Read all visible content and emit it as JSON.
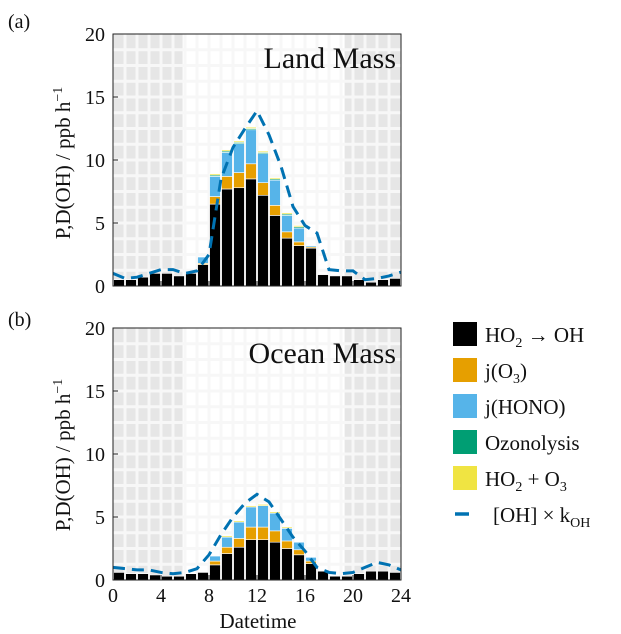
{
  "colors": {
    "night_shade": "#e6e6e6",
    "grid": "#f4f4f4",
    "ho2_oh": "#000000",
    "jo3": "#e69f00",
    "jhono": "#56b4e9",
    "ozonolysis": "#009e73",
    "ho2_o3": "#f0e442",
    "oh_k": "#0072b2"
  },
  "legend": [
    {
      "key": "ho2_oh",
      "pre": "HO",
      "sub": "2",
      "post": " → OH",
      "kind": "box"
    },
    {
      "key": "jo3",
      "pre": "j(O",
      "sub": "3",
      "post": ")",
      "kind": "box"
    },
    {
      "key": "jhono",
      "pre": "j(HONO)",
      "sub": "",
      "post": "",
      "kind": "box"
    },
    {
      "key": "ozonolysis",
      "pre": "Ozonolysis",
      "sub": "",
      "post": "",
      "kind": "box"
    },
    {
      "key": "ho2_o3",
      "pre": "HO",
      "sub": "2",
      "post": " + O",
      "sub2": "3",
      "kind": "box"
    },
    {
      "key": "oh_k",
      "pre": "[OH] × k",
      "sub": "OH",
      "post": "",
      "kind": "dash"
    }
  ],
  "chart_data": [
    {
      "type": "bar",
      "panel_label": "(a)",
      "title": "Land Mass",
      "ylabel": "P,D(OH) / ppb h",
      "ylabel_sup": "−1",
      "xlabel": "",
      "ylim": [
        0,
        20
      ],
      "xlim": [
        0,
        24
      ],
      "yticks": [
        0,
        5,
        10,
        15,
        20
      ],
      "xticks": [
        0,
        4,
        8,
        12,
        16,
        20,
        24
      ],
      "show_x_tick_labels": false,
      "night_shading": [
        [
          0,
          5.8
        ],
        [
          19.3,
          24
        ]
      ],
      "x": [
        0.5,
        1.5,
        2.5,
        3.5,
        4.5,
        5.5,
        6.5,
        7.5,
        8.5,
        9.5,
        10.5,
        11.5,
        12.5,
        13.5,
        14.5,
        15.5,
        16.5,
        17.5,
        18.5,
        19.5,
        20.5,
        21.5,
        22.5,
        23.5
      ],
      "series": [
        {
          "name": "HO2 → OH",
          "key": "ho2_oh",
          "values": [
            0.5,
            0.5,
            0.7,
            1.0,
            1.0,
            0.8,
            1.0,
            1.7,
            6.5,
            7.7,
            7.8,
            8.5,
            7.2,
            5.6,
            3.8,
            3.2,
            3.0,
            0.9,
            0.8,
            0.8,
            0.5,
            0.3,
            0.5,
            0.6
          ]
        },
        {
          "name": "j(O3)",
          "key": "jo3",
          "values": [
            0,
            0,
            0,
            0,
            0,
            0,
            0,
            0.1,
            0.6,
            1.0,
            1.2,
            1.2,
            1.0,
            0.8,
            0.5,
            0.3,
            0.1,
            0,
            0,
            0,
            0,
            0,
            0,
            0
          ]
        },
        {
          "name": "j(HONO)",
          "key": "jhono",
          "values": [
            0,
            0,
            0,
            0,
            0,
            0,
            0,
            0.5,
            1.6,
            1.9,
            2.3,
            2.7,
            2.3,
            2.0,
            1.3,
            1.1,
            0.1,
            0,
            0,
            0,
            0,
            0,
            0,
            0
          ]
        },
        {
          "name": "Ozonolysis",
          "key": "ozonolysis",
          "values": [
            0,
            0,
            0,
            0,
            0,
            0,
            0,
            0,
            0.1,
            0.1,
            0.1,
            0.1,
            0.1,
            0.1,
            0.1,
            0.1,
            0,
            0,
            0,
            0,
            0,
            0,
            0,
            0
          ]
        },
        {
          "name": "HO2 + O3",
          "key": "ho2_o3",
          "values": [
            0,
            0,
            0,
            0,
            0,
            0,
            0,
            0,
            0.1,
            0.1,
            0.1,
            0.1,
            0.1,
            0.1,
            0.1,
            0.1,
            0,
            0,
            0,
            0,
            0,
            0,
            0,
            0
          ]
        }
      ],
      "line": {
        "name": "[OH] × kOH",
        "key": "oh_k",
        "x": [
          0,
          1,
          2,
          3,
          4,
          5,
          6,
          7,
          8,
          9,
          10,
          11,
          12,
          13,
          14,
          15,
          16,
          17,
          18,
          19,
          20,
          21,
          22,
          23,
          24
        ],
        "values": [
          1.0,
          0.6,
          0.7,
          1.0,
          1.3,
          1.3,
          1.0,
          1.2,
          2.5,
          8.5,
          11.0,
          12.5,
          13.9,
          12.0,
          9.5,
          6.3,
          4.8,
          4.2,
          1.3,
          1.2,
          1.2,
          0.5,
          0.6,
          0.8,
          1.1
        ]
      }
    },
    {
      "type": "bar",
      "panel_label": "(b)",
      "title": "Ocean Mass",
      "ylabel": "P,D(OH) / ppb h",
      "ylabel_sup": "−1",
      "xlabel": "Datetime",
      "ylim": [
        0,
        20
      ],
      "xlim": [
        0,
        24
      ],
      "yticks": [
        0,
        5,
        10,
        15,
        20
      ],
      "xticks": [
        0,
        4,
        8,
        12,
        16,
        20,
        24
      ],
      "show_x_tick_labels": true,
      "night_shading": [
        [
          0,
          5.8
        ],
        [
          19.3,
          24
        ]
      ],
      "x": [
        0.5,
        1.5,
        2.5,
        3.5,
        4.5,
        5.5,
        6.5,
        7.5,
        8.5,
        9.5,
        10.5,
        11.5,
        12.5,
        13.5,
        14.5,
        15.5,
        16.5,
        17.5,
        18.5,
        19.5,
        20.5,
        21.5,
        22.5,
        23.5
      ],
      "series": [
        {
          "name": "HO2 → OH",
          "key": "ho2_oh",
          "values": [
            0.6,
            0.5,
            0.5,
            0.4,
            0.3,
            0.3,
            0.5,
            0.6,
            1.2,
            2.1,
            2.6,
            3.2,
            3.2,
            3.0,
            2.5,
            2.0,
            1.3,
            0.7,
            0.3,
            0.3,
            0.5,
            0.7,
            0.7,
            0.6
          ]
        },
        {
          "name": "j(O3)",
          "key": "jo3",
          "values": [
            0,
            0,
            0,
            0,
            0,
            0,
            0,
            0,
            0.3,
            0.5,
            0.7,
            1.0,
            1.0,
            0.9,
            0.6,
            0.4,
            0.2,
            0,
            0,
            0,
            0,
            0,
            0,
            0
          ]
        },
        {
          "name": "j(HONO)",
          "key": "jhono",
          "values": [
            0,
            0,
            0,
            0,
            0,
            0,
            0,
            0,
            0.4,
            0.8,
            1.3,
            1.6,
            1.7,
            1.4,
            1.0,
            0.6,
            0.3,
            0,
            0,
            0,
            0,
            0,
            0,
            0
          ]
        },
        {
          "name": "Ozonolysis",
          "key": "ozonolysis",
          "values": [
            0,
            0,
            0,
            0,
            0,
            0,
            0,
            0,
            0,
            0,
            0,
            0,
            0,
            0,
            0,
            0,
            0,
            0,
            0,
            0,
            0,
            0,
            0,
            0
          ]
        },
        {
          "name": "HO2 + O3",
          "key": "ho2_o3",
          "values": [
            0,
            0,
            0,
            0,
            0,
            0,
            0,
            0,
            0,
            0.1,
            0.1,
            0.1,
            0.1,
            0.1,
            0.1,
            0,
            0,
            0,
            0,
            0,
            0,
            0,
            0,
            0
          ]
        }
      ],
      "line": {
        "name": "[OH] × kOH",
        "key": "oh_k",
        "x": [
          0,
          1,
          2,
          3,
          4,
          5,
          6,
          7,
          8,
          9,
          10,
          11,
          12,
          13,
          14,
          15,
          16,
          17,
          18,
          19,
          20,
          21,
          22,
          23,
          24
        ],
        "values": [
          1.0,
          0.9,
          0.8,
          0.8,
          0.6,
          0.5,
          0.6,
          0.9,
          2.0,
          3.6,
          5.0,
          6.1,
          6.8,
          6.2,
          4.8,
          3.4,
          2.3,
          1.0,
          0.6,
          0.5,
          0.6,
          1.0,
          1.4,
          1.2,
          0.8
        ]
      }
    }
  ]
}
